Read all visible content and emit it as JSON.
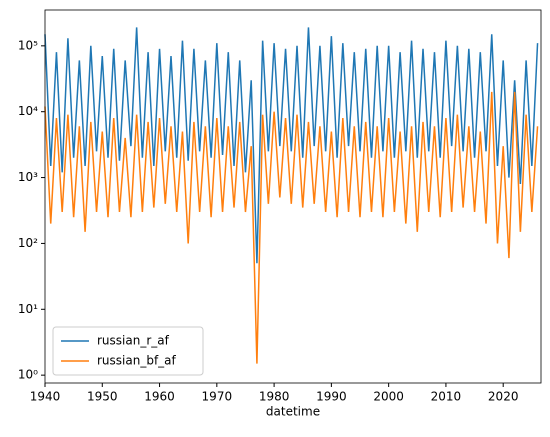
{
  "chart_data": {
    "type": "line",
    "x_label": "datetime",
    "x": [
      1940,
      1941,
      1942,
      1943,
      1944,
      1945,
      1946,
      1947,
      1948,
      1949,
      1950,
      1951,
      1952,
      1953,
      1954,
      1955,
      1956,
      1957,
      1958,
      1959,
      1960,
      1961,
      1962,
      1963,
      1964,
      1965,
      1966,
      1967,
      1968,
      1969,
      1970,
      1971,
      1972,
      1973,
      1974,
      1975,
      1976,
      1977,
      1978,
      1979,
      1980,
      1981,
      1982,
      1983,
      1984,
      1985,
      1986,
      1987,
      1988,
      1989,
      1990,
      1991,
      1992,
      1993,
      1994,
      1995,
      1996,
      1997,
      1998,
      1999,
      2000,
      2001,
      2002,
      2003,
      2004,
      2005,
      2006,
      2007,
      2008,
      2009,
      2010,
      2011,
      2012,
      2013,
      2014,
      2015,
      2016,
      2017,
      2018,
      2019,
      2020,
      2021,
      2022,
      2023,
      2024,
      2025,
      2026
    ],
    "series": [
      {
        "name": "russian_r_af",
        "color": "#1f77b4",
        "values": [
          150000,
          1500,
          80000,
          1200,
          130000,
          2000,
          60000,
          1500,
          100000,
          2500,
          70000,
          2000,
          90000,
          1800,
          60000,
          3000,
          190000,
          2000,
          80000,
          1500,
          90000,
          2500,
          70000,
          2000,
          120000,
          1800,
          90000,
          2500,
          60000,
          2000,
          110000,
          2200,
          80000,
          1500,
          60000,
          1200,
          30000,
          50,
          120000,
          2500,
          110000,
          3000,
          90000,
          2500,
          100000,
          2000,
          190000,
          3000,
          100000,
          2500,
          140000,
          2000,
          110000,
          3000,
          80000,
          2500,
          90000,
          2000,
          100000,
          2500,
          100000,
          2000,
          80000,
          2500,
          120000,
          2000,
          90000,
          2500,
          80000,
          2000,
          120000,
          3000,
          100000,
          2500,
          90000,
          2000,
          80000,
          2500,
          150000,
          1500,
          60000,
          1000,
          30000,
          800,
          60000,
          1500,
          110000
        ]
      },
      {
        "name": "russian_bf_af",
        "color": "#ff7f0e",
        "values": [
          12000,
          200,
          8000,
          300,
          9000,
          250,
          6000,
          150,
          7000,
          300,
          5000,
          250,
          8000,
          300,
          4000,
          250,
          9000,
          300,
          7000,
          350,
          8000,
          400,
          6000,
          300,
          5000,
          100,
          7000,
          300,
          6000,
          250,
          8000,
          300,
          6000,
          350,
          7000,
          300,
          3000,
          1.5,
          9000,
          400,
          10000,
          500,
          8000,
          400,
          9000,
          350,
          7000,
          400,
          6000,
          300,
          5000,
          250,
          8000,
          300,
          6000,
          250,
          7000,
          300,
          6000,
          250,
          8000,
          300,
          5000,
          200,
          6000,
          150,
          7000,
          300,
          6000,
          250,
          8000,
          300,
          9000,
          350,
          6000,
          300,
          5000,
          200,
          20000,
          100,
          3000,
          60,
          20000,
          150,
          9000,
          300,
          6000
        ]
      }
    ],
    "xlim": [
      1940,
      2026.6
    ],
    "xticks": [
      1940,
      1950,
      1960,
      1970,
      1980,
      1990,
      2000,
      2010,
      2020
    ],
    "ylim": [
      0.76,
      350000
    ],
    "yticks": [
      {
        "value": 1,
        "label": "10⁰"
      },
      {
        "value": 10,
        "label": "10¹"
      },
      {
        "value": 100,
        "label": "10²"
      },
      {
        "value": 1000,
        "label": "10³"
      },
      {
        "value": 10000,
        "label": "10⁴"
      },
      {
        "value": 100000,
        "label": "10⁵"
      }
    ],
    "log_y": true,
    "legend": "lower left"
  }
}
